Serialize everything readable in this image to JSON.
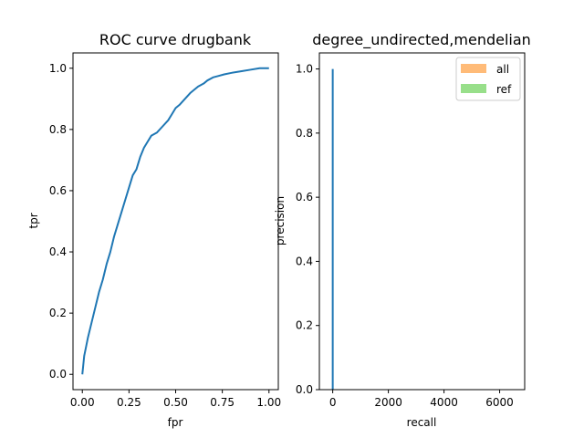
{
  "chart_data": [
    {
      "type": "line",
      "title": "ROC curve drugbank",
      "xlabel": "fpr",
      "ylabel": "tpr",
      "xlim": [
        -0.05,
        1.05
      ],
      "ylim": [
        -0.05,
        1.05
      ],
      "xticks": [
        0.0,
        0.25,
        0.5,
        0.75,
        1.0
      ],
      "xticklabels": [
        "0.00",
        "0.25",
        "0.50",
        "0.75",
        "1.00"
      ],
      "yticks": [
        0.0,
        0.2,
        0.4,
        0.6,
        0.8,
        1.0
      ],
      "yticklabels": [
        "0.0",
        "0.2",
        "0.4",
        "0.6",
        "0.8",
        "1.0"
      ],
      "grid": false,
      "series": [
        {
          "color": "#1f77b4",
          "x": [
            0.0,
            0.005,
            0.01,
            0.02,
            0.03,
            0.05,
            0.07,
            0.09,
            0.11,
            0.13,
            0.15,
            0.17,
            0.19,
            0.21,
            0.23,
            0.25,
            0.27,
            0.29,
            0.31,
            0.33,
            0.35,
            0.37,
            0.4,
            0.43,
            0.46,
            0.48,
            0.5,
            0.52,
            0.55,
            0.58,
            0.6,
            0.62,
            0.65,
            0.67,
            0.7,
            0.73,
            0.76,
            0.8,
            0.85,
            0.9,
            0.95,
            0.98,
            1.0
          ],
          "y": [
            0.0,
            0.03,
            0.06,
            0.09,
            0.12,
            0.17,
            0.22,
            0.27,
            0.31,
            0.36,
            0.4,
            0.45,
            0.49,
            0.53,
            0.57,
            0.61,
            0.65,
            0.67,
            0.71,
            0.74,
            0.76,
            0.78,
            0.79,
            0.81,
            0.83,
            0.85,
            0.87,
            0.88,
            0.9,
            0.92,
            0.93,
            0.94,
            0.95,
            0.96,
            0.97,
            0.975,
            0.98,
            0.985,
            0.99,
            0.995,
            1.0,
            1.0,
            1.0
          ]
        }
      ]
    },
    {
      "type": "bar",
      "title": "degree_undirected,mendelian",
      "xlabel": "recall",
      "ylabel": "precision",
      "xlim": [
        -480,
        6900
      ],
      "ylim": [
        0.0,
        1.05
      ],
      "xticks": [
        0,
        2000,
        4000,
        6000
      ],
      "xticklabels": [
        "0",
        "2000",
        "4000",
        "6000"
      ],
      "yticks": [
        0.0,
        0.2,
        0.4,
        0.6,
        0.8,
        1.0
      ],
      "yticklabels": [
        "0.0",
        "0.2",
        "0.4",
        "0.6",
        "0.8",
        "1.0"
      ],
      "grid": false,
      "legend_position": "top-right",
      "series": [
        {
          "name": "all",
          "color": "#ffbb78"
        },
        {
          "name": "ref",
          "color": "#98df8a"
        }
      ],
      "line": {
        "color": "#1f77b4",
        "x": [
          0,
          0
        ],
        "y": [
          0.0,
          1.0
        ]
      }
    }
  ]
}
